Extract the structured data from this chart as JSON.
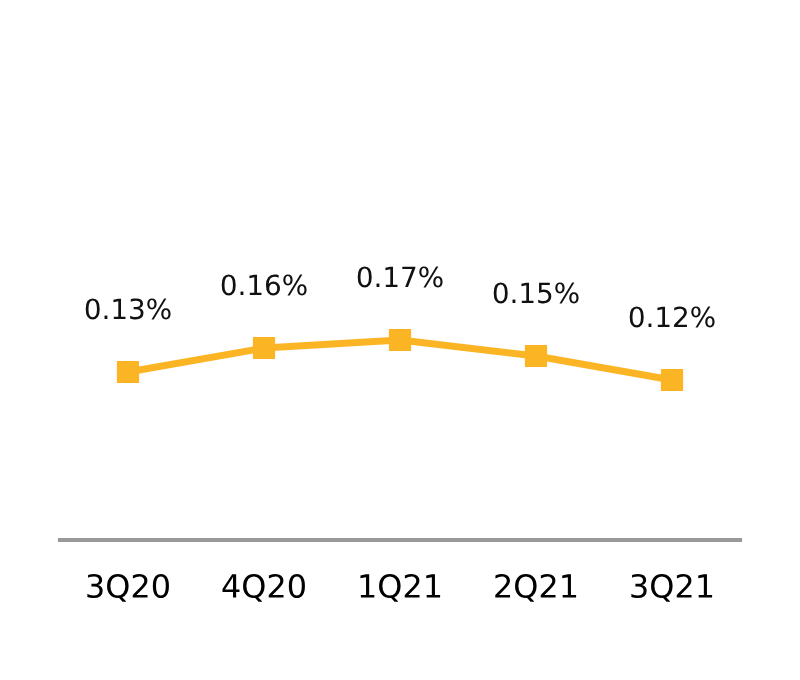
{
  "chart_data": {
    "type": "line",
    "categories": [
      "3Q20",
      "4Q20",
      "1Q21",
      "2Q21",
      "3Q21"
    ],
    "series": [
      {
        "color": "#fbb524",
        "values": [
          0.13,
          0.16,
          0.17,
          0.15,
          0.12
        ],
        "value_labels": [
          "0.13%",
          "0.16%",
          "0.17%",
          "0.15%",
          "0.12%"
        ]
      }
    ],
    "marker": "square",
    "line_style": "solid",
    "grid": false,
    "legend": false
  }
}
